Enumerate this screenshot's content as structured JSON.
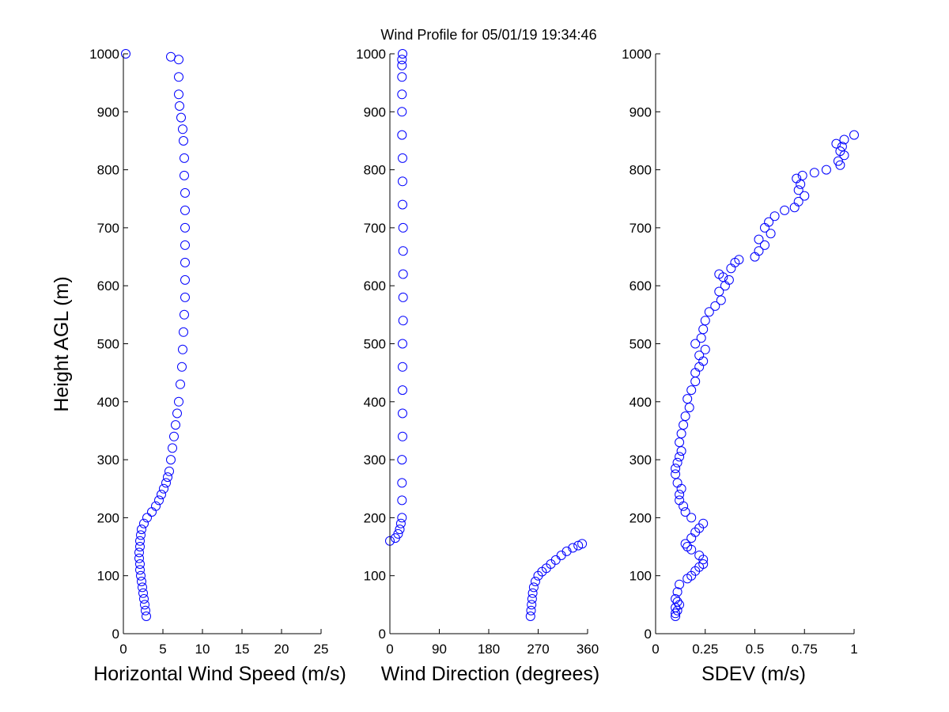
{
  "figure": {
    "title": "Wind Profile for  05/01/19 19:34:46",
    "ylabel": "Height AGL (m)"
  },
  "style": {
    "marker_color": "#0000ff",
    "axis_color": "#000000",
    "background": "#ffffff"
  },
  "chart_data": [
    {
      "type": "scatter",
      "xlabel": "Horizontal Wind Speed (m/s)",
      "ylabel": "Height AGL (m)",
      "xlim": [
        0,
        25
      ],
      "ylim": [
        0,
        1000
      ],
      "xticks": [
        0,
        5,
        10,
        15,
        20,
        25
      ],
      "yticks": [
        0,
        100,
        200,
        300,
        400,
        500,
        600,
        700,
        800,
        900,
        1000
      ],
      "grid": false,
      "marker": "open-circle",
      "x": [
        2.9,
        2.8,
        2.7,
        2.6,
        2.5,
        2.4,
        2.3,
        2.2,
        2.1,
        2.1,
        2.0,
        2.0,
        2.1,
        2.1,
        2.2,
        2.3,
        2.6,
        3.0,
        3.6,
        4.1,
        4.5,
        4.8,
        5.1,
        5.4,
        5.6,
        5.8,
        6.0,
        6.2,
        6.4,
        6.6,
        6.8,
        7.0,
        7.2,
        7.4,
        7.5,
        7.6,
        7.7,
        7.8,
        7.8,
        7.8,
        7.8,
        7.8,
        7.8,
        7.8,
        7.7,
        7.7,
        7.6,
        7.5,
        7.3,
        7.1,
        7.0,
        7.0,
        7.0,
        6.0,
        0.3
      ],
      "y": [
        30,
        40,
        50,
        60,
        70,
        80,
        90,
        100,
        110,
        120,
        130,
        140,
        150,
        160,
        170,
        180,
        190,
        200,
        210,
        220,
        230,
        240,
        250,
        260,
        270,
        280,
        300,
        320,
        340,
        360,
        380,
        400,
        430,
        460,
        490,
        520,
        550,
        580,
        610,
        640,
        670,
        700,
        730,
        760,
        790,
        820,
        850,
        870,
        890,
        910,
        930,
        960,
        990,
        995,
        1000
      ]
    },
    {
      "type": "scatter",
      "xlabel": "Wind Direction (degrees)",
      "ylabel": "",
      "xlim": [
        0,
        360
      ],
      "ylim": [
        0,
        1000
      ],
      "xticks": [
        0,
        90,
        180,
        270,
        360
      ],
      "yticks": [
        0,
        100,
        200,
        300,
        400,
        500,
        600,
        700,
        800,
        900,
        1000
      ],
      "grid": false,
      "marker": "open-circle",
      "x": [
        256,
        257,
        258,
        259,
        260,
        262,
        265,
        270,
        277,
        285,
        293,
        302,
        312,
        322,
        333,
        343,
        350,
        0,
        10,
        15,
        18,
        20,
        22,
        22,
        22,
        22,
        23,
        23,
        23,
        23,
        23,
        24,
        24,
        24,
        24,
        24,
        23,
        23,
        23,
        22,
        22,
        22,
        22,
        22,
        22,
        23
      ],
      "y": [
        30,
        40,
        50,
        60,
        70,
        80,
        90,
        100,
        107,
        113,
        120,
        127,
        135,
        142,
        148,
        152,
        155,
        160,
        165,
        172,
        180,
        190,
        200,
        230,
        260,
        300,
        340,
        380,
        420,
        460,
        500,
        540,
        580,
        620,
        660,
        700,
        740,
        780,
        820,
        860,
        900,
        930,
        960,
        980,
        990,
        1000
      ]
    },
    {
      "type": "scatter",
      "xlabel": "SDEV  (m/s)",
      "ylabel": "",
      "xlim": [
        0,
        1
      ],
      "ylim": [
        0,
        1000
      ],
      "xticks": [
        0,
        0.25,
        0.5,
        0.75,
        1
      ],
      "tick_labels": [
        "0",
        "0.25",
        "0.5",
        "0.75",
        "1"
      ],
      "yticks": [
        0,
        100,
        200,
        300,
        400,
        500,
        600,
        700,
        800,
        900,
        1000
      ],
      "grid": false,
      "marker": "open-circle",
      "x": [
        0.1,
        0.1,
        0.11,
        0.1,
        0.12,
        0.11,
        0.1,
        0.11,
        0.12,
        0.16,
        0.18,
        0.2,
        0.22,
        0.24,
        0.24,
        0.22,
        0.18,
        0.16,
        0.15,
        0.18,
        0.2,
        0.22,
        0.24,
        0.18,
        0.15,
        0.14,
        0.12,
        0.12,
        0.13,
        0.11,
        0.1,
        0.1,
        0.11,
        0.12,
        0.13,
        0.12,
        0.13,
        0.14,
        0.15,
        0.17,
        0.16,
        0.18,
        0.2,
        0.2,
        0.22,
        0.24,
        0.22,
        0.25,
        0.2,
        0.23,
        0.24,
        0.25,
        0.27,
        0.3,
        0.33,
        0.32,
        0.35,
        0.37,
        0.34,
        0.32,
        0.38,
        0.4,
        0.42,
        0.5,
        0.52,
        0.55,
        0.52,
        0.58,
        0.55,
        0.57,
        0.6,
        0.65,
        0.7,
        0.72,
        0.75,
        0.72,
        0.73,
        0.71,
        0.74,
        0.8,
        0.86,
        0.93,
        0.92,
        0.95,
        0.93,
        0.94,
        0.91,
        0.95,
        1.0
      ],
      "y": [
        30,
        35,
        40,
        45,
        50,
        55,
        60,
        72,
        85,
        95,
        100,
        108,
        115,
        120,
        128,
        135,
        145,
        150,
        155,
        165,
        175,
        182,
        190,
        200,
        210,
        220,
        230,
        240,
        250,
        260,
        275,
        285,
        295,
        305,
        315,
        330,
        345,
        360,
        375,
        390,
        405,
        420,
        435,
        450,
        460,
        470,
        480,
        490,
        500,
        510,
        525,
        540,
        555,
        565,
        575,
        590,
        600,
        610,
        615,
        620,
        630,
        640,
        645,
        650,
        660,
        670,
        680,
        690,
        700,
        710,
        720,
        730,
        735,
        745,
        755,
        765,
        775,
        785,
        790,
        795,
        800,
        808,
        815,
        825,
        832,
        840,
        845,
        852,
        860
      ]
    }
  ]
}
